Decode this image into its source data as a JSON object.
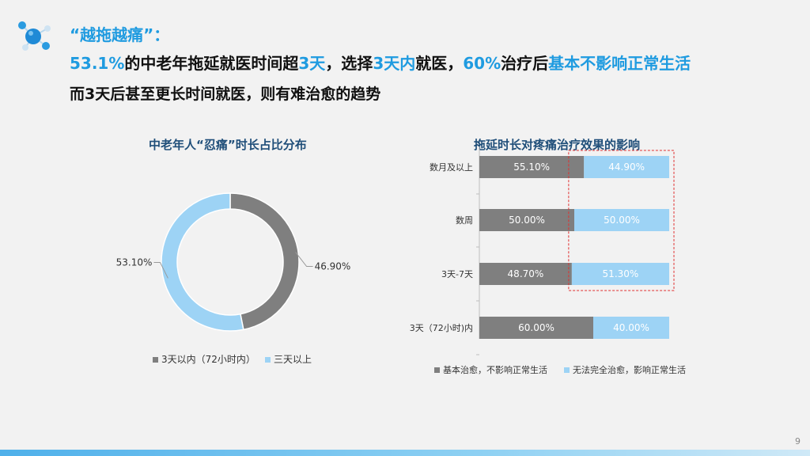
{
  "heading": {
    "title": "“越拖越痛”：",
    "line1": {
      "p1": "53.1%",
      "p2": "的中老年拖延就医时间超",
      "p3": "3天",
      "p4": "，选择",
      "p5": "3天内",
      "p6": "就医，",
      "p7": "60%",
      "p8": "治疗后",
      "p9": "基本不影响正常生活"
    },
    "line2": "而3天后甚至更长时间就医，则有难治愈的趋势"
  },
  "page_number": "9",
  "colors": {
    "accent": "#1f9be0",
    "gray_series": "#7f7f7f",
    "blue_series": "#9dd3f5",
    "title_navy": "#1f4e79",
    "highlight_box": "#e03030"
  },
  "chart_data": [
    {
      "type": "pie",
      "variant": "donut",
      "title": "中老年人“忍痛”时长占比分布",
      "categories": [
        "3天以内（72小时内）",
        "三天以上"
      ],
      "values": [
        46.9,
        53.1
      ],
      "value_labels": [
        "46.90%",
        "53.10%"
      ],
      "legend": {
        "placement": "bottom",
        "entries": [
          "3天以内（72小时内）",
          "三天以上"
        ]
      }
    },
    {
      "type": "bar",
      "orientation": "horizontal",
      "stacked": true,
      "percent_stacked": true,
      "title": "拖延时长对疼痛治疗效果的影响",
      "categories": [
        "数月及以上",
        "数周",
        "3天-7天",
        "3天（72小时)内"
      ],
      "series": [
        {
          "name": "基本治愈，不影响正常生活",
          "values": [
            55.1,
            50.0,
            48.7,
            60.0
          ],
          "labels": [
            "55.10%",
            "50.00%",
            "48.70%",
            "60.00%"
          ]
        },
        {
          "name": "无法完全治愈，影响正常生活",
          "values": [
            44.9,
            50.0,
            51.3,
            40.0
          ],
          "labels": [
            "44.90%",
            "50.00%",
            "51.30%",
            "40.00%"
          ]
        }
      ],
      "xlim": [
        0,
        100
      ],
      "grid": false,
      "legend": {
        "placement": "bottom"
      },
      "annotation": {
        "type": "dashed-box",
        "highlights": "无法完全治愈，影响正常生活 for 数月及以上, 数周, 3天-7天"
      }
    }
  ]
}
